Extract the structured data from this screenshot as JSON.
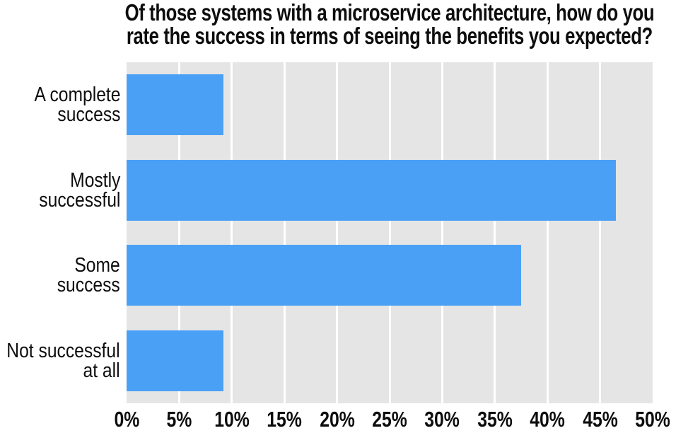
{
  "chart_data": {
    "type": "bar",
    "orientation": "horizontal",
    "title": "Of those systems with a microservice architecture, how do you rate the success in terms of seeing the benefits you expected?",
    "categories": [
      "A complete success",
      "Mostly successful",
      "Some success",
      "Not successful at all"
    ],
    "values": [
      9.2,
      46.5,
      37.5,
      9.2
    ],
    "value_unit": "%",
    "xlabel": "",
    "ylabel": "",
    "xlim": [
      0,
      50
    ],
    "x_tick_labels": [
      "0%",
      "5%",
      "10%",
      "15%",
      "20%",
      "25%",
      "30%",
      "35%",
      "40%",
      "45%",
      "50%"
    ],
    "grid": true,
    "legend": false,
    "bar_color": "#4aa0f5",
    "plot_background_color": "#e5e5e5",
    "gridline_color": "#ffffff",
    "text_color": "#0d0d0d"
  },
  "title_lines": [
    "Of those systems with a microservice architecture, how do you",
    "rate the success in terms of seeing the benefits you expected?"
  ],
  "category_label_lines": [
    [
      "A complete",
      "success"
    ],
    [
      "Mostly",
      "successful"
    ],
    [
      "Some",
      "success"
    ],
    [
      "Not successful",
      "at all"
    ]
  ]
}
